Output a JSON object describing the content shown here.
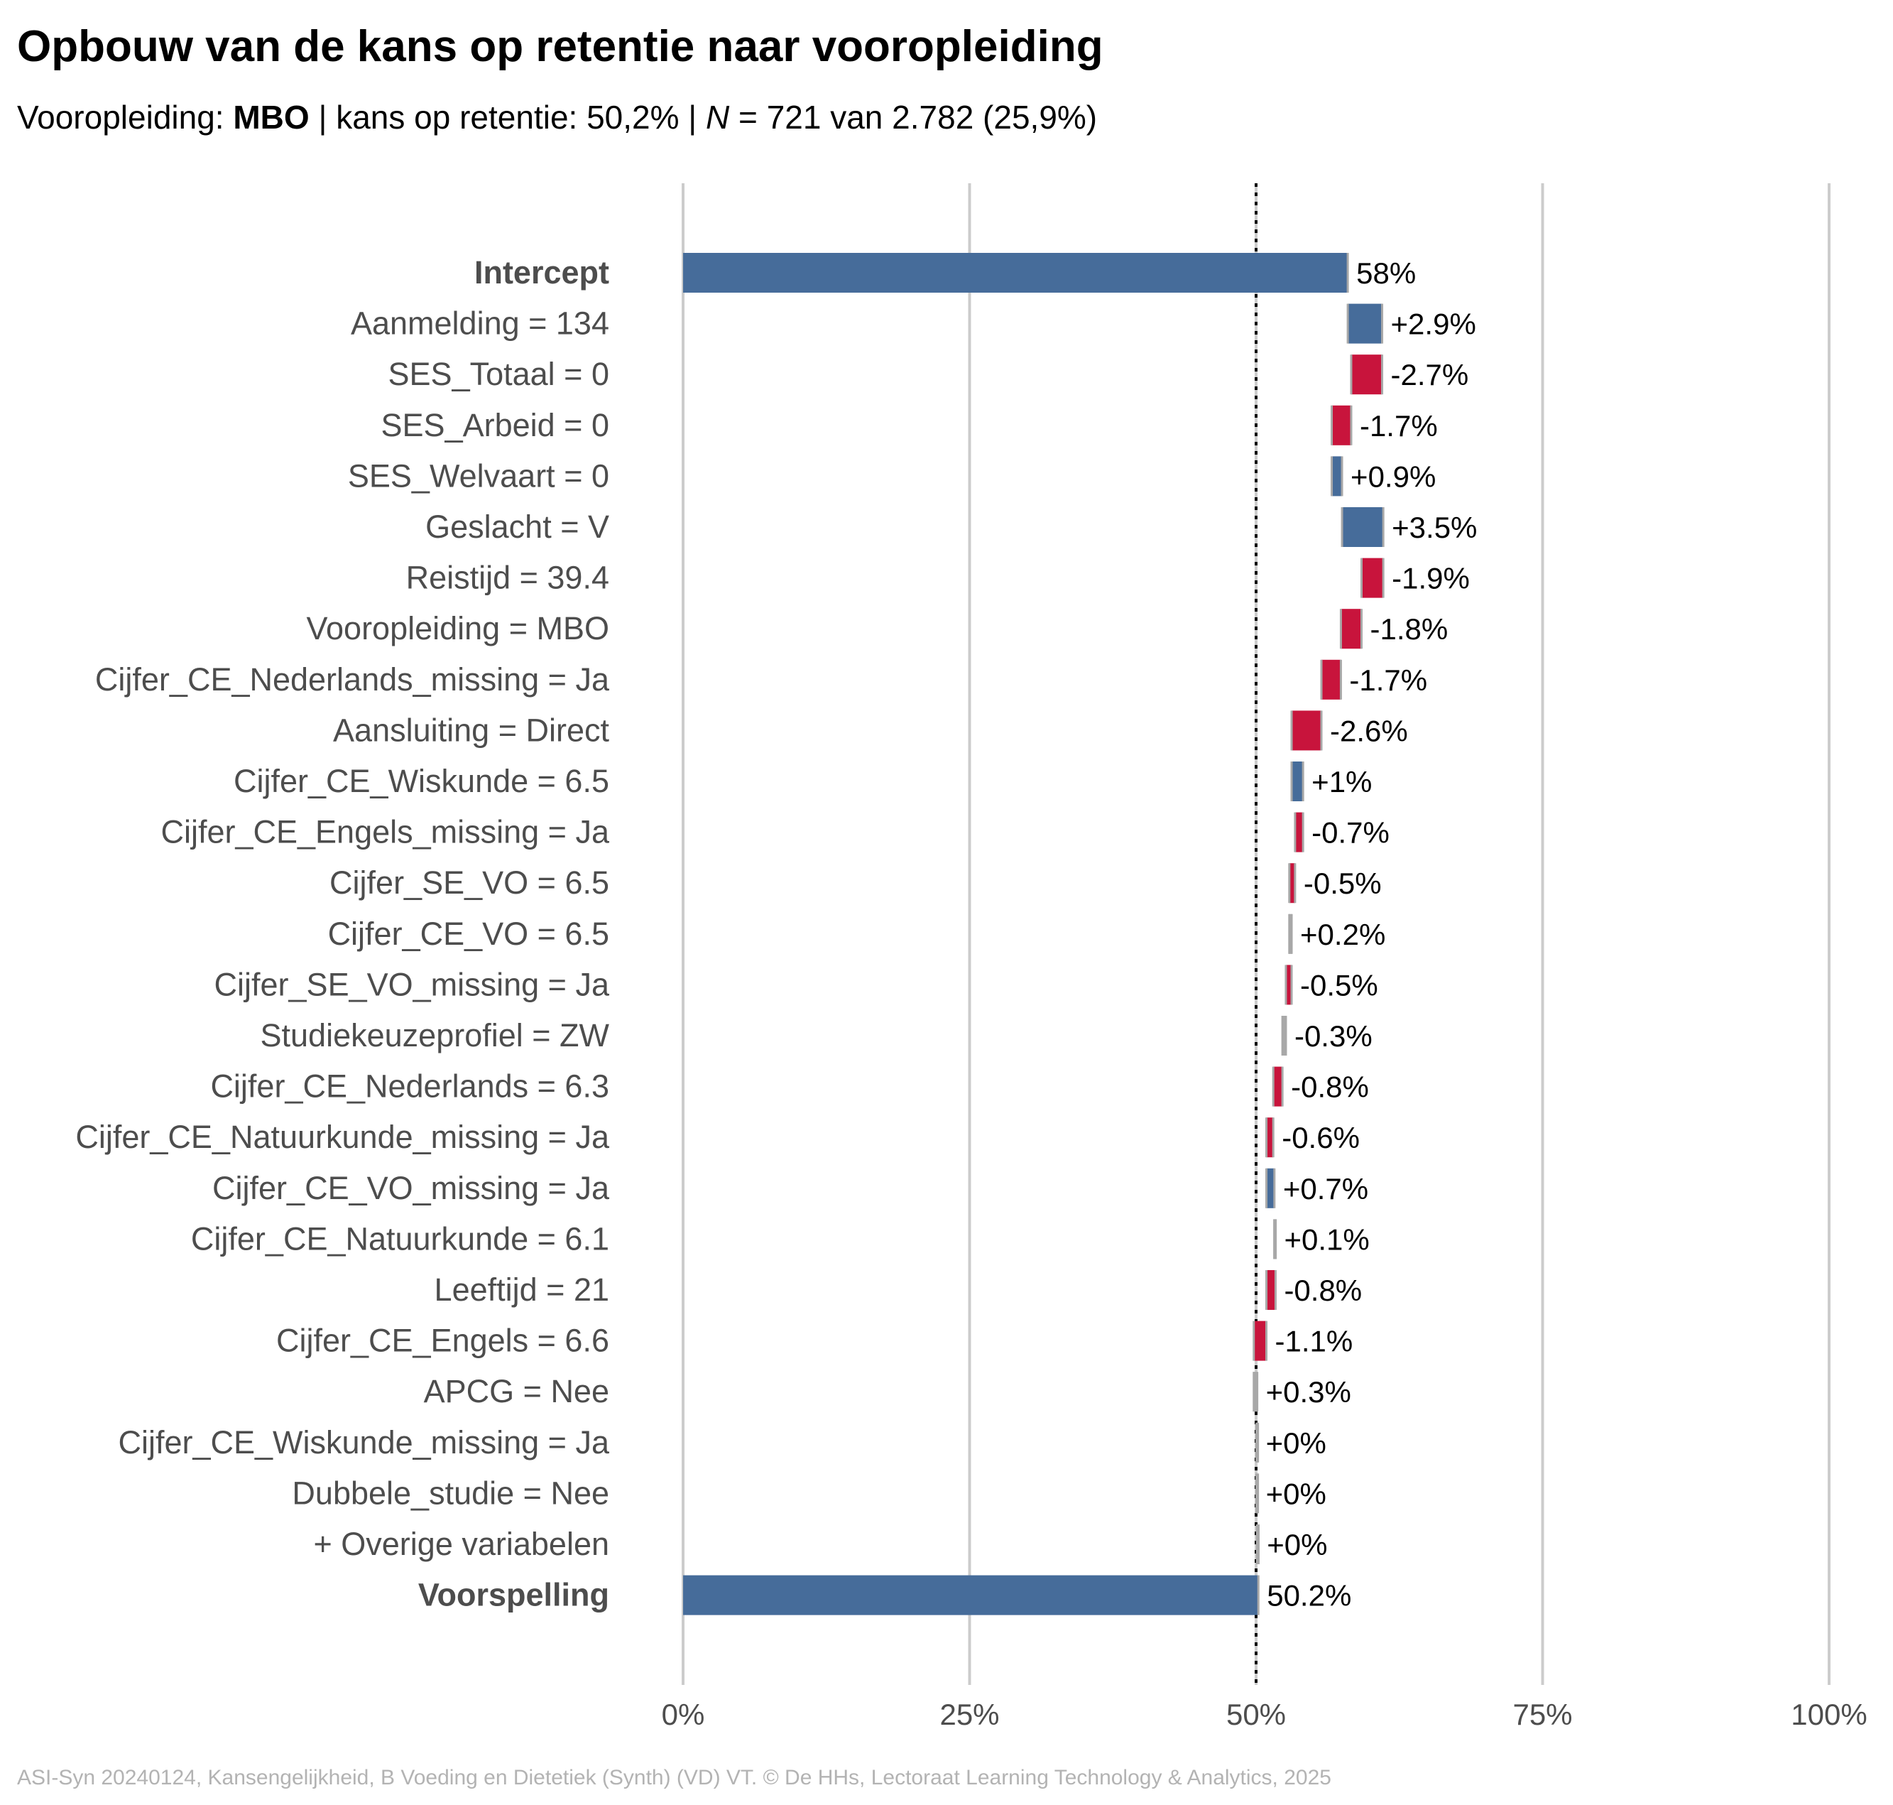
{
  "title": "Opbouw van de kans op retentie naar vooropleiding",
  "subtitle": {
    "prefix": "Vooropleiding: ",
    "group": "MBO",
    "part2": " | kans op retentie: 50,2% | ",
    "n_symbol": "N",
    "part3": " = 721 van 2.782 (25,9%)"
  },
  "caption": "ASI-Syn 20240124, Kansengelijkheid, B Voeding en Dietetiek (Synth) (VD) VT. © De HHs, Lectoraat Learning Technology & Analytics, 2025",
  "colors": {
    "positive": "#466c9a",
    "negative": "#c8143c",
    "neutral": "#a8a8a8",
    "total": "#466c9a",
    "grid": "#cccccc",
    "label": "#4d4d4d",
    "value_text": "#000000"
  },
  "chart_data": {
    "type": "bar",
    "subtype": "waterfall",
    "orientation": "horizontal",
    "xlim": [
      0,
      100
    ],
    "x_ticks": [
      0,
      25,
      50,
      75,
      100
    ],
    "x_tick_labels": [
      "0%",
      "25%",
      "50%",
      "75%",
      "100%"
    ],
    "reference_line": 50,
    "grid": true,
    "rows": [
      {
        "label": "Intercept",
        "kind": "total",
        "start": 0,
        "end": 58.0,
        "value_label": "58%",
        "bold": true
      },
      {
        "label": "Aanmelding = 134",
        "kind": "pos",
        "start": 58.0,
        "end": 61.0,
        "value_label": "+2.9%"
      },
      {
        "label": "SES_Totaal = 0",
        "kind": "neg",
        "start": 61.0,
        "end": 58.3,
        "value_label": "-2.7%"
      },
      {
        "label": "SES_Arbeid = 0",
        "kind": "neg",
        "start": 58.3,
        "end": 56.6,
        "value_label": "-1.7%"
      },
      {
        "label": "SES_Welvaart = 0",
        "kind": "pos",
        "start": 56.6,
        "end": 57.5,
        "value_label": "+0.9%"
      },
      {
        "label": "Geslacht = V",
        "kind": "pos",
        "start": 57.5,
        "end": 61.1,
        "value_label": "+3.5%"
      },
      {
        "label": "Reistijd = 39.4",
        "kind": "neg",
        "start": 61.1,
        "end": 59.2,
        "value_label": "-1.9%"
      },
      {
        "label": "Vooropleiding = MBO",
        "kind": "neg",
        "start": 59.2,
        "end": 57.4,
        "value_label": "-1.8%"
      },
      {
        "label": "Cijfer_CE_Nederlands_missing = Ja",
        "kind": "neg",
        "start": 57.4,
        "end": 55.7,
        "value_label": "-1.7%"
      },
      {
        "label": "Aansluiting = Direct",
        "kind": "neg",
        "start": 55.7,
        "end": 53.1,
        "value_label": "-2.6%"
      },
      {
        "label": "Cijfer_CE_Wiskunde = 6.5",
        "kind": "pos",
        "start": 53.1,
        "end": 54.1,
        "value_label": "+1%"
      },
      {
        "label": "Cijfer_CE_Engels_missing = Ja",
        "kind": "neg",
        "start": 54.1,
        "end": 53.4,
        "value_label": "-0.7%"
      },
      {
        "label": "Cijfer_SE_VO = 6.5",
        "kind": "neg",
        "start": 53.4,
        "end": 52.9,
        "value_label": "-0.5%"
      },
      {
        "label": "Cijfer_CE_VO = 6.5",
        "kind": "neutral",
        "start": 52.9,
        "end": 53.1,
        "value_label": "+0.2%"
      },
      {
        "label": "Cijfer_SE_VO_missing = Ja",
        "kind": "neg",
        "start": 53.1,
        "end": 52.6,
        "value_label": "-0.5%"
      },
      {
        "label": "Studiekeuzeprofiel = ZW",
        "kind": "neutral",
        "start": 52.6,
        "end": 52.3,
        "value_label": "-0.3%"
      },
      {
        "label": "Cijfer_CE_Nederlands = 6.3",
        "kind": "neg",
        "start": 52.3,
        "end": 51.5,
        "value_label": "-0.8%"
      },
      {
        "label": "Cijfer_CE_Natuurkunde_missing = Ja",
        "kind": "neg",
        "start": 51.5,
        "end": 50.9,
        "value_label": "-0.6%"
      },
      {
        "label": "Cijfer_CE_VO_missing = Ja",
        "kind": "pos",
        "start": 50.9,
        "end": 51.6,
        "value_label": "+0.7%"
      },
      {
        "label": "Cijfer_CE_Natuurkunde = 6.1",
        "kind": "neutral",
        "start": 51.6,
        "end": 51.7,
        "value_label": "+0.1%"
      },
      {
        "label": "Leeftijd = 21",
        "kind": "neg",
        "start": 51.7,
        "end": 50.9,
        "value_label": "-0.8%"
      },
      {
        "label": "Cijfer_CE_Engels = 6.6",
        "kind": "neg",
        "start": 50.9,
        "end": 49.8,
        "value_label": "-1.1%"
      },
      {
        "label": "APCG = Nee",
        "kind": "neutral",
        "start": 49.8,
        "end": 50.1,
        "value_label": "+0.3%"
      },
      {
        "label": "Cijfer_CE_Wiskunde_missing = Ja",
        "kind": "neutral",
        "start": 50.1,
        "end": 50.1,
        "value_label": "+0%"
      },
      {
        "label": "Dubbele_studie = Nee",
        "kind": "neutral",
        "start": 50.1,
        "end": 50.1,
        "value_label": "+0%"
      },
      {
        "label": "+ Overige variabelen",
        "kind": "neutral",
        "start": 50.1,
        "end": 50.2,
        "value_label": "+0%"
      },
      {
        "label": "Voorspelling",
        "kind": "total",
        "start": 0,
        "end": 50.2,
        "value_label": "50.2%",
        "bold": true
      }
    ]
  }
}
